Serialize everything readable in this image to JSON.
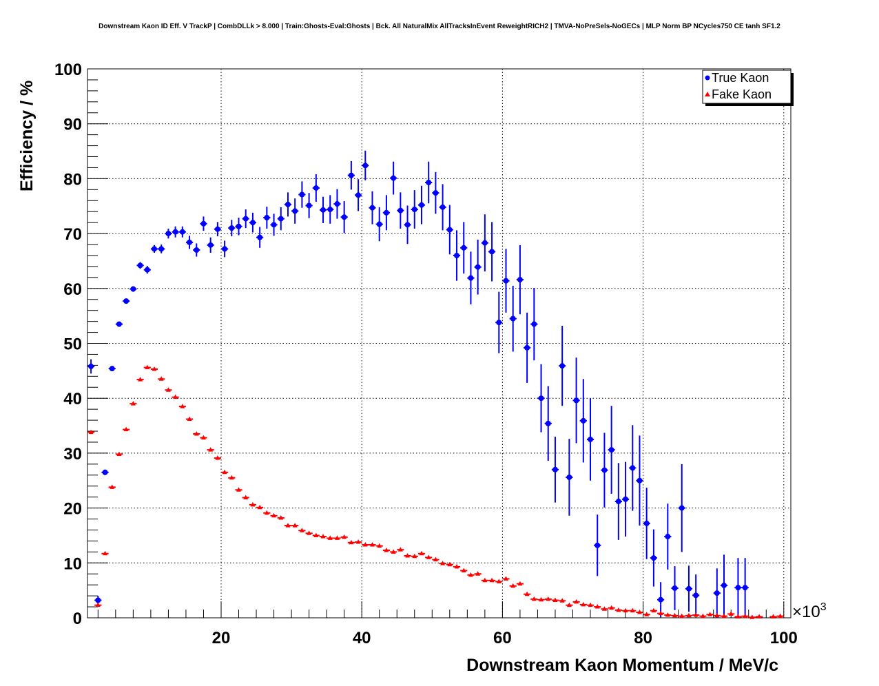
{
  "chart_data": {
    "type": "scatter",
    "title": "Downstream Kaon ID Eff. V TrackP | CombDLLk > 8.000 | Train:Ghosts-Eval:Ghosts | Bck. All NaturalMix AllTracksInEvent ReweightRICH2 | TMVA-NoPreSels-NoGECs | MLP Norm BP NCycles750 CE tanh SF1.2",
    "xlabel": "Downstream Kaon Momentum / MeV/c",
    "ylabel": "Efficiency / %",
    "x_multiplier": "×10",
    "x_multiplier_exp": "3",
    "xlim": [
      1,
      101
    ],
    "ylim": [
      0,
      100
    ],
    "xticks": [
      "20",
      "40",
      "60",
      "80",
      "100"
    ],
    "yticks": [
      "0",
      "10",
      "20",
      "30",
      "40",
      "50",
      "60",
      "70",
      "80",
      "90",
      "100"
    ],
    "grid": true,
    "legend_position": "top-right",
    "series": [
      {
        "name": "True Kaon",
        "color": "#0000ff",
        "marker": "circle",
        "x": [
          1.5,
          2.5,
          3.5,
          4.5,
          5.5,
          6.5,
          7.5,
          8.5,
          9.5,
          10.5,
          11.5,
          12.5,
          13.5,
          14.5,
          15.5,
          16.5,
          17.5,
          18.5,
          19.5,
          20.5,
          21.5,
          22.5,
          23.5,
          24.5,
          25.5,
          26.5,
          27.5,
          28.5,
          29.5,
          30.5,
          31.5,
          32.5,
          33.5,
          34.5,
          35.5,
          36.5,
          37.5,
          38.5,
          39.5,
          40.5,
          41.5,
          42.5,
          43.5,
          44.5,
          45.5,
          46.5,
          47.5,
          48.5,
          49.5,
          50.5,
          51.5,
          52.5,
          53.5,
          54.5,
          55.5,
          56.5,
          57.5,
          58.5,
          59.5,
          60.5,
          61.5,
          62.5,
          63.5,
          64.5,
          65.5,
          66.5,
          67.5,
          68.5,
          69.5,
          70.5,
          71.5,
          72.5,
          73.5,
          74.5,
          75.5,
          76.5,
          77.5,
          78.5,
          79.5,
          80.5,
          81.5,
          82.5,
          83.5,
          84.5,
          85.5,
          86.5,
          87.5,
          90.5,
          91.5,
          93.5,
          94.5
        ],
        "y": [
          45.8,
          3.2,
          26.5,
          45.4,
          53.5,
          57.7,
          59.9,
          64.2,
          63.4,
          67.2,
          67.2,
          70.0,
          70.3,
          70.3,
          68.4,
          67.0,
          71.8,
          67.9,
          70.8,
          67.2,
          71.0,
          71.3,
          72.7,
          72.0,
          69.3,
          72.9,
          71.6,
          72.7,
          75.3,
          74.1,
          77.1,
          75.1,
          78.3,
          74.3,
          74.4,
          75.4,
          73.0,
          80.6,
          77.0,
          82.4,
          74.7,
          71.7,
          73.8,
          80.1,
          74.2,
          71.6,
          74.4,
          75.2,
          79.3,
          77.4,
          74.8,
          70.7,
          66.0,
          67.4,
          61.9,
          63.9,
          68.3,
          66.7,
          53.8,
          61.4,
          54.5,
          61.6,
          49.2,
          53.5,
          40.0,
          35.4,
          27.0,
          45.9,
          25.6,
          39.6,
          35.9,
          32.5,
          13.2,
          26.9,
          30.6,
          21.2,
          21.6,
          27.3,
          25.0,
          17.2,
          10.9,
          3.3,
          14.8,
          5.4,
          20.0,
          5.3,
          4.1,
          4.5,
          5.9,
          5.5,
          5.5
        ],
        "yerr": [
          1.3,
          0.8,
          0.5,
          0.4,
          0.4,
          0.4,
          0.5,
          0.6,
          0.7,
          0.7,
          0.8,
          0.9,
          1.0,
          1.0,
          1.2,
          1.2,
          1.3,
          1.4,
          1.3,
          1.5,
          1.5,
          1.6,
          1.7,
          1.8,
          1.9,
          2.0,
          2.0,
          2.1,
          2.2,
          2.3,
          2.4,
          2.3,
          2.5,
          2.4,
          2.6,
          2.7,
          2.9,
          2.6,
          2.9,
          2.7,
          3.0,
          3.1,
          3.2,
          3.0,
          3.3,
          3.5,
          3.5,
          3.5,
          3.8,
          3.8,
          4.2,
          4.5,
          4.6,
          4.7,
          4.8,
          5.0,
          5.2,
          5.4,
          5.6,
          5.8,
          6.0,
          6.3,
          6.4,
          6.6,
          6.2,
          6.8,
          6.0,
          7.3,
          7.0,
          7.8,
          7.6,
          7.5,
          5.6,
          6.8,
          8.0,
          7.0,
          6.8,
          7.8,
          8.2,
          6.5,
          5.2,
          3.2,
          6.0,
          4.0,
          8.0,
          4.2,
          3.8,
          4.5,
          5.6,
          5.4,
          5.4
        ]
      },
      {
        "name": "Fake Kaon",
        "color": "#ff0000",
        "marker": "triangle",
        "x": [
          1.5,
          2.5,
          3.5,
          4.5,
          5.5,
          6.5,
          7.5,
          8.5,
          9.5,
          10.5,
          11.5,
          12.5,
          13.5,
          14.5,
          15.5,
          16.5,
          17.5,
          18.5,
          19.5,
          20.5,
          21.5,
          22.5,
          23.5,
          24.5,
          25.5,
          26.5,
          27.5,
          28.5,
          29.5,
          30.5,
          31.5,
          32.5,
          33.5,
          34.5,
          35.5,
          36.5,
          37.5,
          38.5,
          39.5,
          40.5,
          41.5,
          42.5,
          43.5,
          44.5,
          45.5,
          46.5,
          47.5,
          48.5,
          49.5,
          50.5,
          51.5,
          52.5,
          53.5,
          54.5,
          55.5,
          56.5,
          57.5,
          58.5,
          59.5,
          60.5,
          61.5,
          62.5,
          63.5,
          64.5,
          65.5,
          66.5,
          67.5,
          68.5,
          69.5,
          70.5,
          71.5,
          72.5,
          73.5,
          74.5,
          75.5,
          76.5,
          77.5,
          78.5,
          79.5,
          80.5,
          81.5,
          82.5,
          83.5,
          84.5,
          85.5,
          86.5,
          87.5,
          88.5,
          89.5,
          90.5,
          91.5,
          92.5,
          93.5,
          94.5,
          95.5,
          96.5,
          98.5,
          99.5
        ],
        "y": [
          33.8,
          2.3,
          11.7,
          23.8,
          29.8,
          34.3,
          39.0,
          43.4,
          45.6,
          45.3,
          43.5,
          41.5,
          40.2,
          38.5,
          36.2,
          33.5,
          32.8,
          30.6,
          29.1,
          26.5,
          25.5,
          23.3,
          21.9,
          20.6,
          20.1,
          19.1,
          18.6,
          18.2,
          16.8,
          16.8,
          15.9,
          15.4,
          15.0,
          14.8,
          14.5,
          14.5,
          14.7,
          13.7,
          13.8,
          13.3,
          13.3,
          13.1,
          12.3,
          12.0,
          12.4,
          11.3,
          11.2,
          11.7,
          11.0,
          10.6,
          9.9,
          9.7,
          9.3,
          8.6,
          7.8,
          8.0,
          6.8,
          6.8,
          6.6,
          7.1,
          5.8,
          6.2,
          4.3,
          3.4,
          3.3,
          3.4,
          3.2,
          3.1,
          2.3,
          2.9,
          2.4,
          2.3,
          2.0,
          1.6,
          1.8,
          1.4,
          1.3,
          1.3,
          1.0,
          0.6,
          1.3,
          0.8,
          0.5,
          0.4,
          0.3,
          0.4,
          0.5,
          0.3,
          0.6,
          0.4,
          0.3,
          0.7,
          0.2,
          0.3,
          0.1,
          0.2,
          0.2,
          0.3
        ]
      }
    ]
  }
}
